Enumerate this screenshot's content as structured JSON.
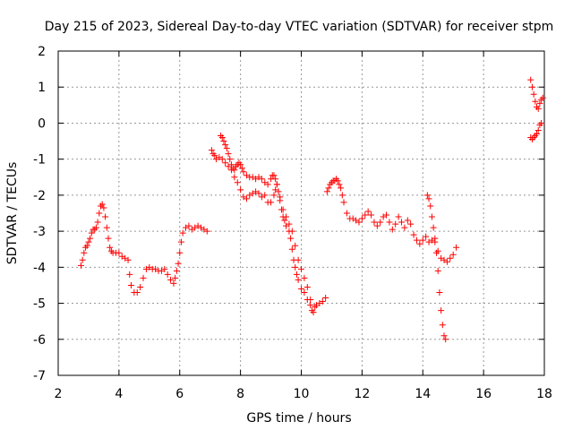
{
  "chart_data": {
    "type": "scatter",
    "title": "Day 215 of 2023, Sidereal Day-to-day VTEC variation (SDTVAR) for receiver stpm",
    "xlabel": "GPS time / hours",
    "ylabel": "SDTVAR / TECUs",
    "xlim": [
      2,
      18
    ],
    "ylim": [
      -7,
      2
    ],
    "xticks": [
      2,
      4,
      6,
      8,
      10,
      12,
      14,
      16,
      18
    ],
    "yticks": [
      -7,
      -6,
      -5,
      -4,
      -3,
      -2,
      -1,
      0,
      1,
      2
    ],
    "grid": true,
    "marker": "+",
    "color": "#ff0000",
    "series": [
      {
        "name": "seg1",
        "points": [
          [
            2.75,
            -3.95
          ],
          [
            2.8,
            -3.8
          ],
          [
            2.85,
            -3.6
          ],
          [
            2.9,
            -3.45
          ],
          [
            2.95,
            -3.4
          ],
          [
            3.0,
            -3.3
          ],
          [
            3.05,
            -3.2
          ],
          [
            3.1,
            -3.05
          ],
          [
            3.15,
            -2.95
          ],
          [
            3.2,
            -2.95
          ],
          [
            3.25,
            -2.9
          ],
          [
            3.3,
            -2.75
          ],
          [
            3.35,
            -2.5
          ],
          [
            3.4,
            -2.3
          ],
          [
            3.45,
            -2.25
          ],
          [
            3.5,
            -2.35
          ],
          [
            3.55,
            -2.6
          ],
          [
            3.6,
            -2.9
          ],
          [
            3.65,
            -3.2
          ],
          [
            3.7,
            -3.45
          ],
          [
            3.75,
            -3.55
          ],
          [
            3.8,
            -3.6
          ],
          [
            3.9,
            -3.6
          ],
          [
            4.0,
            -3.6
          ],
          [
            4.1,
            -3.7
          ],
          [
            4.2,
            -3.75
          ],
          [
            4.3,
            -3.8
          ],
          [
            4.35,
            -4.2
          ],
          [
            4.4,
            -4.5
          ],
          [
            4.5,
            -4.7
          ],
          [
            4.6,
            -4.7
          ],
          [
            4.7,
            -4.55
          ],
          [
            4.8,
            -4.3
          ],
          [
            4.9,
            -4.05
          ],
          [
            5.0,
            -4.0
          ],
          [
            5.1,
            -4.05
          ],
          [
            5.2,
            -4.05
          ],
          [
            5.3,
            -4.1
          ],
          [
            5.4,
            -4.1
          ],
          [
            5.5,
            -4.05
          ],
          [
            5.6,
            -4.2
          ],
          [
            5.7,
            -4.35
          ],
          [
            5.8,
            -4.45
          ],
          [
            5.85,
            -4.3
          ],
          [
            5.9,
            -4.1
          ],
          [
            5.95,
            -3.9
          ],
          [
            6.0,
            -3.6
          ],
          [
            6.05,
            -3.3
          ],
          [
            6.1,
            -3.05
          ],
          [
            6.2,
            -2.9
          ],
          [
            6.3,
            -2.85
          ],
          [
            6.4,
            -2.95
          ],
          [
            6.5,
            -2.9
          ],
          [
            6.6,
            -2.85
          ],
          [
            6.7,
            -2.9
          ],
          [
            6.8,
            -2.95
          ],
          [
            6.9,
            -3.0
          ]
        ]
      },
      {
        "name": "seg2",
        "points": [
          [
            7.05,
            -0.75
          ],
          [
            7.1,
            -0.85
          ],
          [
            7.15,
            -0.9
          ],
          [
            7.2,
            -1.0
          ],
          [
            7.3,
            -0.95
          ],
          [
            7.4,
            -1.0
          ],
          [
            7.5,
            -1.1
          ],
          [
            7.6,
            -1.2
          ],
          [
            7.7,
            -1.3
          ],
          [
            7.8,
            -1.5
          ],
          [
            7.9,
            -1.65
          ],
          [
            8.0,
            -1.85
          ],
          [
            8.1,
            -2.05
          ],
          [
            8.2,
            -2.1
          ],
          [
            8.3,
            -2.0
          ],
          [
            8.4,
            -1.95
          ],
          [
            8.5,
            -1.9
          ],
          [
            8.6,
            -1.95
          ],
          [
            8.7,
            -2.05
          ],
          [
            8.8,
            -2.0
          ],
          [
            8.9,
            -2.2
          ],
          [
            9.0,
            -2.2
          ],
          [
            9.1,
            -2.0
          ],
          [
            9.15,
            -1.85
          ],
          [
            9.2,
            -1.7
          ],
          [
            9.3,
            -2.05
          ],
          [
            9.4,
            -2.4
          ],
          [
            9.5,
            -2.6
          ],
          [
            9.6,
            -2.8
          ],
          [
            9.7,
            -3.0
          ],
          [
            9.8,
            -3.4
          ],
          [
            9.9,
            -3.8
          ],
          [
            10.0,
            -4.05
          ],
          [
            10.1,
            -4.3
          ],
          [
            10.2,
            -4.55
          ],
          [
            10.3,
            -4.9
          ],
          [
            10.35,
            -5.2
          ],
          [
            10.4,
            -5.25
          ],
          [
            10.45,
            -5.1
          ],
          [
            10.5,
            -5.05
          ],
          [
            10.6,
            -5.0
          ],
          [
            10.7,
            -4.95
          ],
          [
            10.8,
            -4.85
          ]
        ]
      },
      {
        "name": "seg3",
        "points": [
          [
            7.35,
            -0.35
          ],
          [
            7.4,
            -0.4
          ],
          [
            7.45,
            -0.5
          ],
          [
            7.5,
            -0.6
          ],
          [
            7.55,
            -0.7
          ],
          [
            7.6,
            -0.85
          ],
          [
            7.65,
            -1.0
          ],
          [
            7.7,
            -1.15
          ],
          [
            7.75,
            -1.25
          ],
          [
            7.8,
            -1.3
          ],
          [
            7.85,
            -1.2
          ],
          [
            7.9,
            -1.15
          ],
          [
            7.95,
            -1.1
          ],
          [
            8.0,
            -1.15
          ],
          [
            8.05,
            -1.25
          ],
          [
            8.1,
            -1.35
          ],
          [
            8.2,
            -1.45
          ],
          [
            8.3,
            -1.5
          ],
          [
            8.4,
            -1.5
          ],
          [
            8.5,
            -1.55
          ],
          [
            8.6,
            -1.5
          ],
          [
            8.7,
            -1.55
          ],
          [
            8.8,
            -1.65
          ],
          [
            8.9,
            -1.7
          ],
          [
            9.0,
            -1.55
          ],
          [
            9.05,
            -1.45
          ],
          [
            9.1,
            -1.45
          ],
          [
            9.15,
            -1.55
          ],
          [
            9.2,
            -1.7
          ],
          [
            9.25,
            -1.9
          ],
          [
            9.3,
            -2.15
          ],
          [
            9.35,
            -2.4
          ],
          [
            9.4,
            -2.6
          ],
          [
            9.45,
            -2.7
          ],
          [
            9.5,
            -2.85
          ],
          [
            9.6,
            -3.0
          ],
          [
            9.65,
            -3.2
          ],
          [
            9.7,
            -3.5
          ],
          [
            9.75,
            -3.8
          ],
          [
            9.8,
            -4.0
          ],
          [
            9.85,
            -4.2
          ],
          [
            9.9,
            -4.35
          ],
          [
            10.0,
            -4.6
          ],
          [
            10.1,
            -4.7
          ],
          [
            10.2,
            -4.9
          ],
          [
            10.3,
            -5.05
          ]
        ]
      },
      {
        "name": "seg4",
        "points": [
          [
            10.85,
            -1.9
          ],
          [
            10.9,
            -1.8
          ],
          [
            10.95,
            -1.7
          ],
          [
            11.0,
            -1.65
          ],
          [
            11.05,
            -1.6
          ],
          [
            11.1,
            -1.6
          ],
          [
            11.15,
            -1.55
          ],
          [
            11.2,
            -1.6
          ],
          [
            11.25,
            -1.7
          ],
          [
            11.3,
            -1.8
          ],
          [
            11.35,
            -2.0
          ],
          [
            11.4,
            -2.2
          ],
          [
            11.5,
            -2.5
          ],
          [
            11.6,
            -2.65
          ],
          [
            11.7,
            -2.65
          ],
          [
            11.8,
            -2.7
          ],
          [
            11.9,
            -2.75
          ],
          [
            12.0,
            -2.65
          ],
          [
            12.1,
            -2.55
          ],
          [
            12.2,
            -2.45
          ],
          [
            12.3,
            -2.55
          ],
          [
            12.4,
            -2.75
          ],
          [
            12.5,
            -2.85
          ],
          [
            12.6,
            -2.75
          ],
          [
            12.7,
            -2.6
          ],
          [
            12.8,
            -2.55
          ],
          [
            12.9,
            -2.75
          ],
          [
            13.0,
            -2.95
          ],
          [
            13.1,
            -2.8
          ],
          [
            13.2,
            -2.6
          ],
          [
            13.3,
            -2.75
          ],
          [
            13.4,
            -2.9
          ],
          [
            13.5,
            -2.7
          ],
          [
            13.6,
            -2.8
          ],
          [
            13.7,
            -3.1
          ],
          [
            13.8,
            -3.25
          ],
          [
            13.9,
            -3.35
          ],
          [
            14.0,
            -3.25
          ],
          [
            14.1,
            -3.15
          ],
          [
            14.2,
            -3.3
          ],
          [
            14.3,
            -3.25
          ],
          [
            14.4,
            -3.3
          ],
          [
            14.5,
            -3.55
          ],
          [
            14.6,
            -3.75
          ],
          [
            14.7,
            -3.8
          ],
          [
            14.8,
            -3.85
          ],
          [
            14.9,
            -3.75
          ],
          [
            15.0,
            -3.65
          ],
          [
            15.1,
            -3.45
          ]
        ]
      },
      {
        "name": "seg5",
        "points": [
          [
            14.15,
            -2.0
          ],
          [
            14.2,
            -2.1
          ],
          [
            14.25,
            -2.3
          ],
          [
            14.3,
            -2.6
          ],
          [
            14.35,
            -2.9
          ],
          [
            14.4,
            -3.2
          ],
          [
            14.45,
            -3.6
          ],
          [
            14.5,
            -4.1
          ],
          [
            14.55,
            -4.7
          ],
          [
            14.6,
            -5.2
          ],
          [
            14.65,
            -5.6
          ],
          [
            14.7,
            -5.9
          ],
          [
            14.75,
            -6.0
          ]
        ]
      },
      {
        "name": "seg6",
        "points": [
          [
            17.55,
            1.2
          ],
          [
            17.6,
            1.0
          ],
          [
            17.65,
            0.8
          ],
          [
            17.7,
            0.6
          ],
          [
            17.75,
            0.45
          ],
          [
            17.8,
            0.4
          ],
          [
            17.85,
            0.55
          ],
          [
            17.9,
            0.65
          ],
          [
            17.95,
            0.7
          ],
          [
            17.55,
            -0.4
          ],
          [
            17.6,
            -0.45
          ],
          [
            17.65,
            -0.4
          ],
          [
            17.7,
            -0.35
          ],
          [
            17.75,
            -0.3
          ],
          [
            17.8,
            -0.2
          ],
          [
            17.85,
            -0.05
          ],
          [
            17.9,
            0.0
          ]
        ]
      }
    ]
  }
}
